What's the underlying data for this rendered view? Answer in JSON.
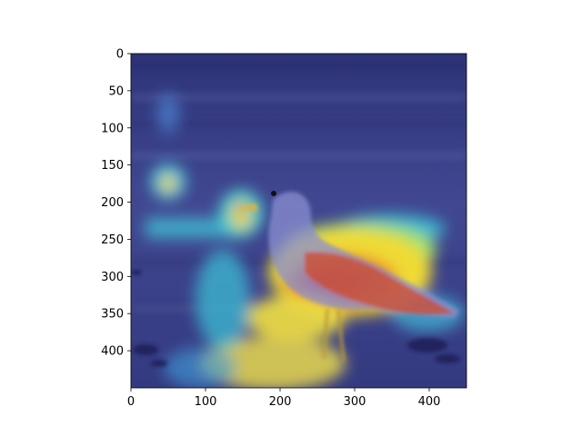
{
  "image": {
    "subject": "seagull-on-beach",
    "overlay": "heatmap-jet-colormap"
  },
  "axes": {
    "x_range": [
      0,
      450
    ],
    "y_range": [
      450,
      0
    ],
    "x_ticks": [
      {
        "value": 0,
        "label": "0"
      },
      {
        "value": 100,
        "label": "100"
      },
      {
        "value": 200,
        "label": "200"
      },
      {
        "value": 300,
        "label": "300"
      },
      {
        "value": 400,
        "label": "400"
      }
    ],
    "y_ticks": [
      {
        "value": 0,
        "label": "0"
      },
      {
        "value": 50,
        "label": "50"
      },
      {
        "value": 100,
        "label": "100"
      },
      {
        "value": 150,
        "label": "150"
      },
      {
        "value": 200,
        "label": "200"
      },
      {
        "value": 250,
        "label": "250"
      },
      {
        "value": 300,
        "label": "300"
      },
      {
        "value": 350,
        "label": "350"
      },
      {
        "value": 400,
        "label": "400"
      }
    ]
  },
  "colors": {
    "background": "#3a3f86",
    "hot": "#d62a1e",
    "warm": "#f0e03a",
    "cool": "#3fd8d8"
  }
}
